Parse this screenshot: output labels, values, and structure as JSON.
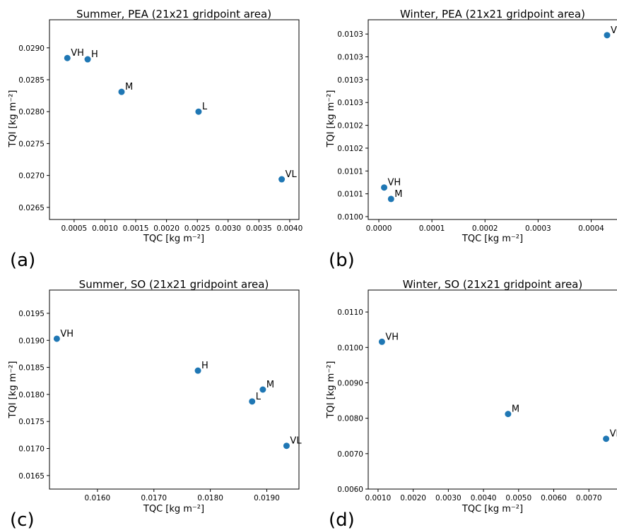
{
  "figure": {
    "panels": [
      {
        "letter": "(a)",
        "xlabel": "TQC [kg m⁻²]",
        "ylabel": "TQI [kg m⁻²]"
      },
      {
        "letter": "(b)",
        "xlabel": "TQC [kg m⁻²]",
        "ylabel": "TQI [kg m⁻²]"
      },
      {
        "letter": "(c)",
        "xlabel": "TQC [kg m⁻²]",
        "ylabel": "TQI [kg m⁻²]"
      },
      {
        "letter": "(d)",
        "xlabel": "TQC [kg m⁻²]",
        "ylabel": "TQI [kg m⁻²]"
      }
    ]
  },
  "chart_data": [
    {
      "type": "scatter",
      "title": "Summer, PEA (21x21 gridpoint area)",
      "xlabel": "TQC [kg m⁻²]",
      "ylabel": "TQI [kg m⁻²]",
      "xlim": [
        0.0001,
        0.00415
      ],
      "ylim": [
        0.02631,
        0.02944
      ],
      "xticks": [
        0.0005,
        0.001,
        0.0015,
        0.002,
        0.0025,
        0.003,
        0.0035,
        0.004
      ],
      "xtick_labels": [
        "0.0005",
        "0.0010",
        "0.0015",
        "0.0020",
        "0.0025",
        "0.0030",
        "0.0035",
        "0.0040"
      ],
      "yticks": [
        0.0265,
        0.027,
        0.0275,
        0.028,
        0.0285,
        0.029
      ],
      "ytick_labels": [
        "0.0265",
        "0.0270",
        "0.0275",
        "0.0280",
        "0.0285",
        "0.0290"
      ],
      "marker_color": "#1f77b4",
      "points": [
        {
          "label": "VH",
          "x": 0.00039,
          "y": 0.02884
        },
        {
          "label": "H",
          "x": 0.00072,
          "y": 0.02882
        },
        {
          "label": "M",
          "x": 0.00127,
          "y": 0.02831
        },
        {
          "label": "L",
          "x": 0.00252,
          "y": 0.028
        },
        {
          "label": "VL",
          "x": 0.00387,
          "y": 0.02694
        }
      ]
    },
    {
      "type": "scatter",
      "title": "Winter, PEA (21x21 gridpoint area)",
      "xlabel": "TQC [kg m⁻²]",
      "ylabel": "TQI [kg m⁻²]",
      "xlim": [
        -2e-05,
        0.00045
      ],
      "ylim": [
        0.009995,
        0.010345
      ],
      "xticks": [
        0.0,
        0.0001,
        0.0002,
        0.0003,
        0.0004
      ],
      "xtick_labels": [
        "0.0000",
        "0.0001",
        "0.0002",
        "0.0003",
        "0.0004"
      ],
      "yticks": [
        0.01,
        0.01004,
        0.01008,
        0.01012,
        0.01016,
        0.0102,
        0.01024,
        0.01028,
        0.01032
      ],
      "ytick_labels": [
        "0.0100",
        "0.0101",
        "0.0101",
        "0.0102",
        "0.0102",
        "0.0103",
        "0.0103",
        "0.0103",
        "0.0103"
      ],
      "marker_color": "#1f77b4",
      "points": [
        {
          "label": "VH",
          "x": 1e-05,
          "y": 0.010051
        },
        {
          "label": "M",
          "x": 2.3e-05,
          "y": 0.010031
        },
        {
          "label": "V",
          "x": 0.00043,
          "y": 0.010318
        }
      ]
    },
    {
      "type": "scatter",
      "title": "Summer, SO (21x21 gridpoint area)",
      "xlabel": "TQC [kg m⁻²]",
      "ylabel": "TQI [kg m⁻²]",
      "xlim": [
        0.01515,
        0.01957
      ],
      "ylim": [
        0.01625,
        0.01993
      ],
      "xticks": [
        0.016,
        0.017,
        0.018,
        0.019
      ],
      "xtick_labels": [
        "0.0160",
        "0.0170",
        "0.0180",
        "0.0190"
      ],
      "yticks": [
        0.0165,
        0.017,
        0.0175,
        0.018,
        0.0185,
        0.019,
        0.0195
      ],
      "ytick_labels": [
        "0.0165",
        "0.0170",
        "0.0175",
        "0.0180",
        "0.0185",
        "0.0190",
        "0.0195"
      ],
      "marker_color": "#1f77b4",
      "points": [
        {
          "label": "VH",
          "x": 0.01528,
          "y": 0.01903
        },
        {
          "label": "H",
          "x": 0.01778,
          "y": 0.01844
        },
        {
          "label": "M",
          "x": 0.01893,
          "y": 0.01809
        },
        {
          "label": "L",
          "x": 0.01874,
          "y": 0.01787
        },
        {
          "label": "VL",
          "x": 0.01935,
          "y": 0.01705
        }
      ]
    },
    {
      "type": "scatter",
      "title": "Winter, SO (21x21 gridpoint area)",
      "xlabel": "TQC [kg m⁻²]",
      "ylabel": "TQI [kg m⁻²]",
      "xlim": [
        0.00072,
        0.00782
      ],
      "ylim": [
        0.006,
        0.01162
      ],
      "xticks": [
        0.001,
        0.002,
        0.003,
        0.004,
        0.005,
        0.006,
        0.007
      ],
      "xtick_labels": [
        "0.0010",
        "0.0020",
        "0.0030",
        "0.0040",
        "0.0050",
        "0.0060",
        "0.0070"
      ],
      "yticks": [
        0.006,
        0.007,
        0.008,
        0.009,
        0.01,
        0.011
      ],
      "ytick_labels": [
        "0.0060",
        "0.0070",
        "0.0080",
        "0.0090",
        "0.0100",
        "0.0110"
      ],
      "marker_color": "#1f77b4",
      "points": [
        {
          "label": "VH",
          "x": 0.00111,
          "y": 0.01016
        },
        {
          "label": "M",
          "x": 0.0047,
          "y": 0.00812
        },
        {
          "label": "Vl",
          "x": 0.00749,
          "y": 0.00742
        }
      ]
    }
  ]
}
